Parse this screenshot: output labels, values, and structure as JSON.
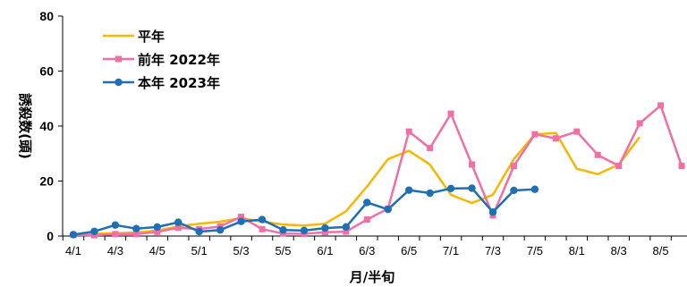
{
  "chart_data": {
    "type": "line",
    "xlabel": "月/半旬",
    "ylabel": "誘殺数(頭)",
    "ylim": [
      0,
      80
    ],
    "yticks": [
      0,
      20,
      40,
      60,
      80
    ],
    "tick_labels": [
      "4/1",
      "4/3",
      "4/5",
      "5/1",
      "5/3",
      "5/5",
      "6/1",
      "6/3",
      "6/5",
      "7/1",
      "7/3",
      "7/5",
      "8/1",
      "8/3",
      "8/5"
    ],
    "legend_position": "top-left",
    "grid": false,
    "series": [
      {
        "name": "平年",
        "color": "#f5b700",
        "marker": "none",
        "values": [
          0.5,
          0.8,
          1.0,
          1.3,
          2.0,
          3.5,
          4.5,
          5.2,
          6.5,
          5.2,
          4.2,
          3.8,
          4.5,
          9.0,
          18.0,
          28.0,
          31.0,
          26.0,
          15.0,
          12.0,
          15.0,
          28.0,
          37.0,
          37.5,
          24.5,
          22.5,
          26.0,
          36.0
        ]
      },
      {
        "name": "前年 2022年",
        "color": "#ef6fa6",
        "marker": "square",
        "values": [
          0.4,
          0.3,
          0.7,
          0.7,
          1.5,
          3.0,
          2.5,
          3.5,
          7.0,
          2.5,
          0.9,
          0.8,
          1.4,
          1.6,
          6.0,
          10.0,
          38.0,
          32.0,
          44.5,
          26.0,
          7.5,
          25.5,
          37.0,
          35.5,
          38.0,
          29.5,
          25.5,
          41.0,
          47.5,
          25.5
        ]
      },
      {
        "name": "本年 2023年",
        "color": "#1f6fb5",
        "marker": "circle",
        "values": [
          0.5,
          1.7,
          4.0,
          2.7,
          3.3,
          5.0,
          1.6,
          2.2,
          5.3,
          6.0,
          2.2,
          2.0,
          2.9,
          3.3,
          12.2,
          9.7,
          16.7,
          15.6,
          17.3,
          17.4,
          8.7,
          16.6,
          17.0
        ]
      }
    ]
  }
}
